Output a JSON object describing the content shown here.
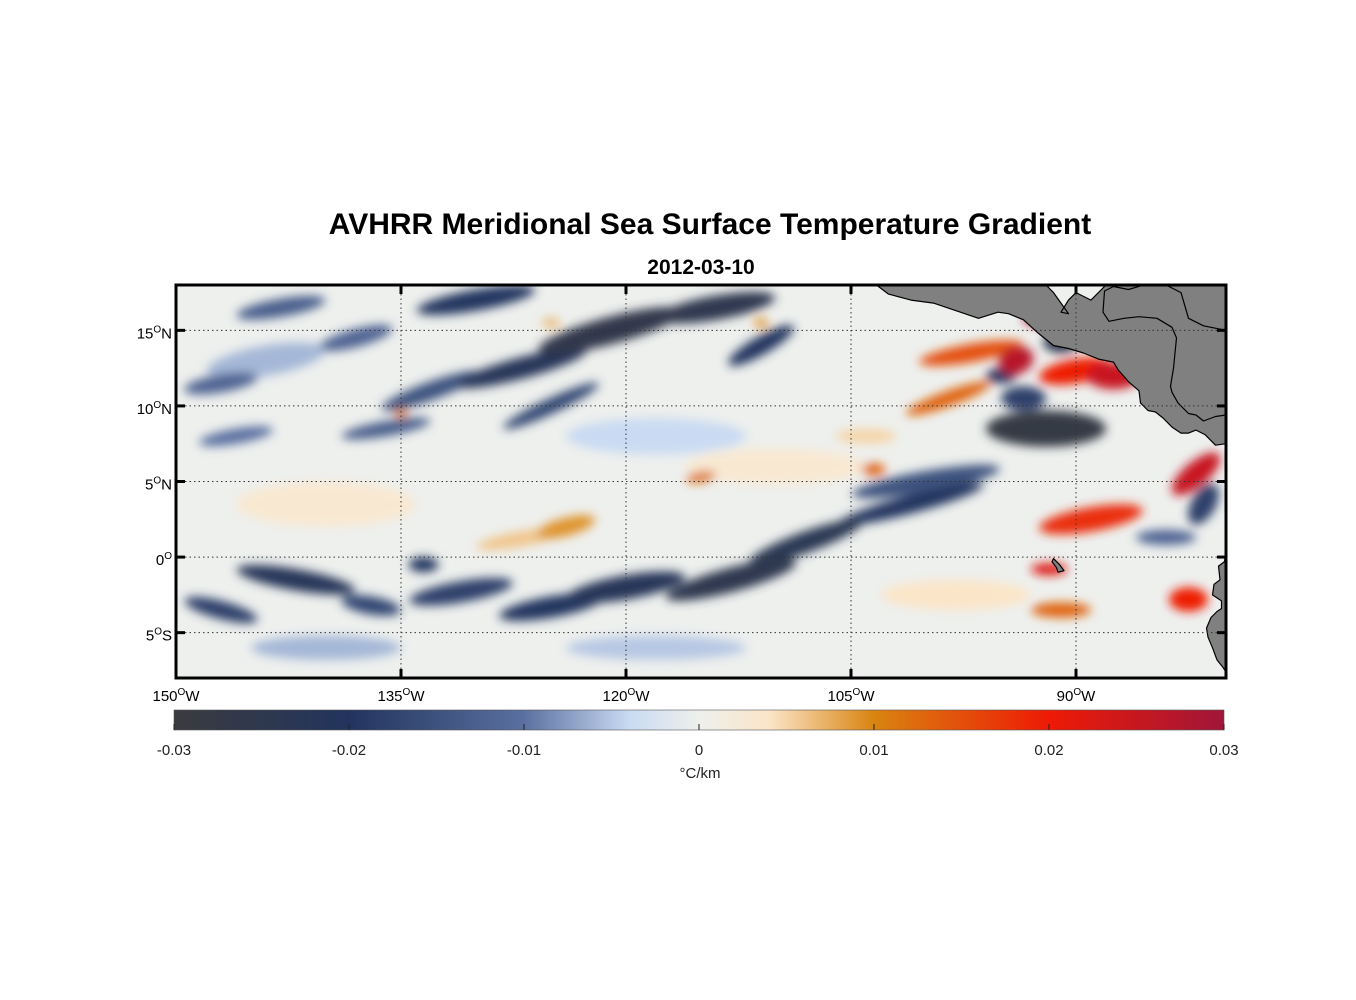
{
  "title": "AVHRR Meridional Sea Surface Temperature Gradient",
  "subtitle": "2012-03-10",
  "map": {
    "lon_range": [
      -150,
      -80
    ],
    "lat_range": [
      -8,
      18
    ],
    "grid": true,
    "land_color": "#808080",
    "lon_ticks": [
      {
        "value": -150,
        "num": "150",
        "sup": "O",
        "hem": "W"
      },
      {
        "value": -135,
        "num": "135",
        "sup": "O",
        "hem": "W"
      },
      {
        "value": -120,
        "num": "120",
        "sup": "O",
        "hem": "W"
      },
      {
        "value": -105,
        "num": "105",
        "sup": "O",
        "hem": "W"
      },
      {
        "value": -90,
        "num": "90",
        "sup": "O",
        "hem": "W"
      }
    ],
    "lat_ticks": [
      {
        "value": 15,
        "num": "15",
        "sup": "O",
        "hem": "N"
      },
      {
        "value": 10,
        "num": "10",
        "sup": "O",
        "hem": "N"
      },
      {
        "value": 5,
        "num": "5",
        "sup": "O",
        "hem": "N"
      },
      {
        "value": 0,
        "num": "0",
        "sup": "O",
        "hem": ""
      },
      {
        "value": -5,
        "num": "5",
        "sup": "O",
        "hem": "S"
      }
    ]
  },
  "colorbar": {
    "min": -0.03,
    "max": 0.03,
    "ticks": [
      {
        "value": -0.03,
        "label": "-0.03"
      },
      {
        "value": -0.02,
        "label": "-0.02"
      },
      {
        "value": -0.01,
        "label": "-0.01"
      },
      {
        "value": 0,
        "label": "0"
      },
      {
        "value": 0.01,
        "label": "0.01"
      },
      {
        "value": 0.02,
        "label": "0.02"
      },
      {
        "value": 0.03,
        "label": "0.03"
      }
    ],
    "unit": "°C/km",
    "stops": [
      {
        "value": -0.03,
        "color": "#3b3b3f"
      },
      {
        "value": -0.02,
        "color": "#22345e"
      },
      {
        "value": -0.01,
        "color": "#5a70a0"
      },
      {
        "value": -0.004,
        "color": "#c9daf2"
      },
      {
        "value": 0,
        "color": "#eef0ec"
      },
      {
        "value": 0.004,
        "color": "#fbe5c8"
      },
      {
        "value": 0.01,
        "color": "#d98410"
      },
      {
        "value": 0.02,
        "color": "#ee1a05"
      },
      {
        "value": 0.03,
        "color": "#a0163a"
      }
    ]
  },
  "features": [
    {
      "lon": -143,
      "lat": 16.5,
      "v": -0.013,
      "rx": 3.0,
      "ry": 0.6,
      "rot": -10
    },
    {
      "lon": -138,
      "lat": 14.5,
      "v": -0.012,
      "rx": 2.5,
      "ry": 0.6,
      "rot": -15
    },
    {
      "lon": -147,
      "lat": 11.5,
      "v": -0.012,
      "rx": 2.5,
      "ry": 0.6,
      "rot": -10
    },
    {
      "lon": -133,
      "lat": 11,
      "v": -0.015,
      "rx": 3.5,
      "ry": 0.6,
      "rot": -20
    },
    {
      "lon": -127,
      "lat": 12.5,
      "v": -0.022,
      "rx": 4.5,
      "ry": 0.7,
      "rot": -15
    },
    {
      "lon": -130,
      "lat": 17,
      "v": -0.02,
      "rx": 4.0,
      "ry": 0.7,
      "rot": -10
    },
    {
      "lon": -121,
      "lat": 15,
      "v": -0.026,
      "rx": 5.0,
      "ry": 0.9,
      "rot": -15
    },
    {
      "lon": -114,
      "lat": 16.5,
      "v": -0.025,
      "rx": 4.0,
      "ry": 0.8,
      "rot": -10
    },
    {
      "lon": -111,
      "lat": 14,
      "v": -0.02,
      "rx": 2.5,
      "ry": 0.6,
      "rot": -30
    },
    {
      "lon": -125,
      "lat": 10,
      "v": -0.017,
      "rx": 3.5,
      "ry": 0.5,
      "rot": -25
    },
    {
      "lon": -136,
      "lat": 8.5,
      "v": -0.013,
      "rx": 3.0,
      "ry": 0.5,
      "rot": -10
    },
    {
      "lon": -146,
      "lat": 8,
      "v": -0.01,
      "rx": 2.5,
      "ry": 0.5,
      "rot": -10
    },
    {
      "lon": -92,
      "lat": 8.5,
      "v": -0.028,
      "rx": 4.0,
      "ry": 1.2,
      "rot": 0
    },
    {
      "lon": -93.5,
      "lat": 10.5,
      "v": -0.018,
      "rx": 1.5,
      "ry": 0.8,
      "rot": 0
    },
    {
      "lon": -100,
      "lat": 5,
      "v": -0.015,
      "rx": 5.0,
      "ry": 0.7,
      "rot": -10
    },
    {
      "lon": -101,
      "lat": 3.5,
      "v": -0.02,
      "rx": 5.0,
      "ry": 0.6,
      "rot": -15
    },
    {
      "lon": -81.5,
      "lat": 3.5,
      "v": -0.018,
      "rx": 1.5,
      "ry": 0.8,
      "rot": -60
    },
    {
      "lon": -91,
      "lat": 14.2,
      "v": -0.025,
      "rx": 1.2,
      "ry": 0.7,
      "rot": 0
    },
    {
      "lon": -95,
      "lat": 12,
      "v": -0.02,
      "rx": 1.0,
      "ry": 0.5,
      "rot": 0
    },
    {
      "lon": -108,
      "lat": 1,
      "v": -0.024,
      "rx": 4.0,
      "ry": 0.7,
      "rot": -20
    },
    {
      "lon": -113,
      "lat": -1.5,
      "v": -0.025,
      "rx": 4.5,
      "ry": 0.8,
      "rot": -15
    },
    {
      "lon": -120,
      "lat": -2,
      "v": -0.022,
      "rx": 4.0,
      "ry": 0.8,
      "rot": -10
    },
    {
      "lon": -125,
      "lat": -3.3,
      "v": -0.02,
      "rx": 3.5,
      "ry": 0.7,
      "rot": -10
    },
    {
      "lon": -131,
      "lat": -2.3,
      "v": -0.018,
      "rx": 3.5,
      "ry": 0.7,
      "rot": -10
    },
    {
      "lon": -142,
      "lat": -1.5,
      "v": -0.022,
      "rx": 4.0,
      "ry": 0.7,
      "rot": 10
    },
    {
      "lon": -147,
      "lat": -3.5,
      "v": -0.018,
      "rx": 2.5,
      "ry": 0.6,
      "rot": 15
    },
    {
      "lon": -137,
      "lat": -3.2,
      "v": -0.017,
      "rx": 2.0,
      "ry": 0.6,
      "rot": 10
    },
    {
      "lon": -133.5,
      "lat": -0.5,
      "v": -0.02,
      "rx": 1.0,
      "ry": 0.5,
      "rot": 0
    },
    {
      "lon": -84,
      "lat": 1.3,
      "v": -0.012,
      "rx": 2.0,
      "ry": 0.5,
      "rot": 0
    },
    {
      "lon": -97,
      "lat": 13.5,
      "v": 0.015,
      "rx": 3.5,
      "ry": 0.6,
      "rot": -10
    },
    {
      "lon": -90,
      "lat": 12.3,
      "v": 0.02,
      "rx": 2.5,
      "ry": 0.8,
      "rot": -10
    },
    {
      "lon": -87.5,
      "lat": 12,
      "v": 0.025,
      "rx": 1.8,
      "ry": 0.9,
      "rot": 0
    },
    {
      "lon": -94,
      "lat": 13,
      "v": 0.027,
      "rx": 1.2,
      "ry": 0.9,
      "rot": -20
    },
    {
      "lon": -92.5,
      "lat": 15.8,
      "v": 0.028,
      "rx": 1.0,
      "ry": 0.5,
      "rot": 0
    },
    {
      "lon": -98.5,
      "lat": 10.5,
      "v": 0.013,
      "rx": 3.0,
      "ry": 0.5,
      "rot": -20
    },
    {
      "lon": -89,
      "lat": 2.5,
      "v": 0.018,
      "rx": 3.5,
      "ry": 0.8,
      "rot": -10
    },
    {
      "lon": -82,
      "lat": 5.5,
      "v": 0.025,
      "rx": 2.0,
      "ry": 0.8,
      "rot": -40
    },
    {
      "lon": -91.8,
      "lat": -0.8,
      "v": 0.022,
      "rx": 1.2,
      "ry": 0.4,
      "rot": 0
    },
    {
      "lon": -91,
      "lat": -3.5,
      "v": 0.013,
      "rx": 2.0,
      "ry": 0.5,
      "rot": 0
    },
    {
      "lon": -82.5,
      "lat": -2.8,
      "v": 0.02,
      "rx": 1.3,
      "ry": 0.8,
      "rot": 0
    },
    {
      "lon": -103.5,
      "lat": 5.8,
      "v": 0.013,
      "rx": 0.8,
      "ry": 0.4,
      "rot": 0
    },
    {
      "lon": -115,
      "lat": 5.3,
      "v": 0.012,
      "rx": 1.0,
      "ry": 0.35,
      "rot": -10
    },
    {
      "lon": -124,
      "lat": 2,
      "v": 0.009,
      "rx": 2.0,
      "ry": 0.6,
      "rot": -15
    },
    {
      "lon": -127,
      "lat": 1.2,
      "v": 0.006,
      "rx": 3.0,
      "ry": 0.5,
      "rot": -10
    },
    {
      "lon": -135,
      "lat": 9.5,
      "v": 0.011,
      "rx": 0.4,
      "ry": 0.3,
      "rot": 0
    },
    {
      "lon": -111,
      "lat": 15.5,
      "v": 0.009,
      "rx": 0.5,
      "ry": 0.3,
      "rot": 0
    },
    {
      "lon": -125,
      "lat": 15.5,
      "v": 0.007,
      "rx": 0.6,
      "ry": 0.3,
      "rot": 0
    },
    {
      "lon": -104,
      "lat": 8,
      "v": 0.005,
      "rx": 2.0,
      "ry": 0.5,
      "rot": 0
    },
    {
      "lon": -110,
      "lat": 6,
      "v": 0.003,
      "rx": 6.0,
      "ry": 1.2,
      "rot": 0
    },
    {
      "lon": -140,
      "lat": 3.5,
      "v": 0.003,
      "rx": 6.0,
      "ry": 1.5,
      "rot": 0
    },
    {
      "lon": -98,
      "lat": -2.5,
      "v": 0.004,
      "rx": 5.0,
      "ry": 1.0,
      "rot": 0
    },
    {
      "lon": -144,
      "lat": 13,
      "v": -0.006,
      "rx": 4.0,
      "ry": 1.0,
      "rot": -10
    },
    {
      "lon": -118,
      "lat": 8,
      "v": -0.004,
      "rx": 6.0,
      "ry": 1.2,
      "rot": 0
    },
    {
      "lon": -140,
      "lat": -6,
      "v": -0.006,
      "rx": 5.0,
      "ry": 0.8,
      "rot": 0
    },
    {
      "lon": -118,
      "lat": -6,
      "v": -0.005,
      "rx": 6.0,
      "ry": 0.8,
      "rot": 0
    }
  ],
  "land": [
    {
      "name": "central-america-landmass",
      "coords": [
        [
          -103.3,
          18
        ],
        [
          -102.5,
          17.4
        ],
        [
          -101,
          17
        ],
        [
          -99.5,
          16.8
        ],
        [
          -98,
          16.3
        ],
        [
          -96.5,
          15.8
        ],
        [
          -95.2,
          16.2
        ],
        [
          -94.5,
          16.1
        ],
        [
          -93.5,
          15.7
        ],
        [
          -92.5,
          14.8
        ],
        [
          -91.5,
          14
        ],
        [
          -90.5,
          13.8
        ],
        [
          -89.5,
          13.5
        ],
        [
          -88.5,
          13.1
        ],
        [
          -87.5,
          12.9
        ],
        [
          -87.2,
          12.4
        ],
        [
          -86.5,
          11.6
        ],
        [
          -85.8,
          11
        ],
        [
          -85.7,
          10.2
        ],
        [
          -85.2,
          9.7
        ],
        [
          -84.7,
          9.6
        ],
        [
          -84.2,
          9.2
        ],
        [
          -83.6,
          8.6
        ],
        [
          -83,
          8.2
        ],
        [
          -82.5,
          8.2
        ],
        [
          -82,
          8.4
        ],
        [
          -81.4,
          8.1
        ],
        [
          -80.7,
          7.4
        ],
        [
          -80,
          7.5
        ],
        [
          -80,
          18
        ],
        [
          -85.5,
          18
        ],
        [
          -86.5,
          17.7
        ],
        [
          -87.5,
          17.9
        ],
        [
          -88.1,
          17.6
        ],
        [
          -88.2,
          16.2
        ],
        [
          -87.8,
          15.6
        ],
        [
          -86.8,
          15.8
        ],
        [
          -85.8,
          15.9
        ],
        [
          -84.6,
          15.8
        ],
        [
          -83.6,
          15.2
        ],
        [
          -83.3,
          14.5
        ],
        [
          -83.5,
          12.5
        ],
        [
          -83.7,
          11.3
        ],
        [
          -83.6,
          10.9
        ],
        [
          -83.2,
          10.2
        ],
        [
          -82.5,
          9.5
        ],
        [
          -82,
          9.4
        ],
        [
          -81.5,
          9
        ],
        [
          -80.7,
          9.3
        ],
        [
          -80,
          9.4
        ],
        [
          -80,
          13.5
        ],
        [
          -80,
          15
        ],
        [
          -81.5,
          15.3
        ],
        [
          -82.5,
          15.8
        ],
        [
          -83,
          17.5
        ],
        [
          -84,
          18
        ],
        [
          -88,
          18
        ],
        [
          -89,
          17
        ],
        [
          -90,
          17.5
        ],
        [
          -90.5,
          17
        ],
        [
          -91,
          16.2
        ],
        [
          -90.5,
          16.1
        ],
        [
          -91.5,
          17.5
        ],
        [
          -92,
          18
        ],
        [
          -103.3,
          18
        ]
      ]
    },
    {
      "name": "south-america-coast",
      "coords": [
        [
          -80,
          0.5
        ],
        [
          -80.1,
          -0.3
        ],
        [
          -80.5,
          -0.6
        ],
        [
          -80.4,
          -1.5
        ],
        [
          -80.8,
          -1.8
        ],
        [
          -80.9,
          -2.5
        ],
        [
          -80.3,
          -2.9
        ],
        [
          -80.3,
          -3.4
        ],
        [
          -80.6,
          -3.6
        ],
        [
          -81,
          -4
        ],
        [
          -81.3,
          -4.7
        ],
        [
          -81.2,
          -5.3
        ],
        [
          -80.9,
          -6
        ],
        [
          -80.6,
          -6.8
        ],
        [
          -80.2,
          -7.3
        ],
        [
          -80,
          -7.6
        ],
        [
          -80,
          -8
        ],
        [
          -80,
          0.5
        ]
      ]
    },
    {
      "name": "galapagos-island",
      "coords": [
        [
          -91.5,
          -0.1
        ],
        [
          -91.1,
          -0.5
        ],
        [
          -90.8,
          -0.9
        ],
        [
          -91.2,
          -1.0
        ],
        [
          -91.3,
          -0.7
        ],
        [
          -91.6,
          -0.3
        ]
      ]
    }
  ]
}
